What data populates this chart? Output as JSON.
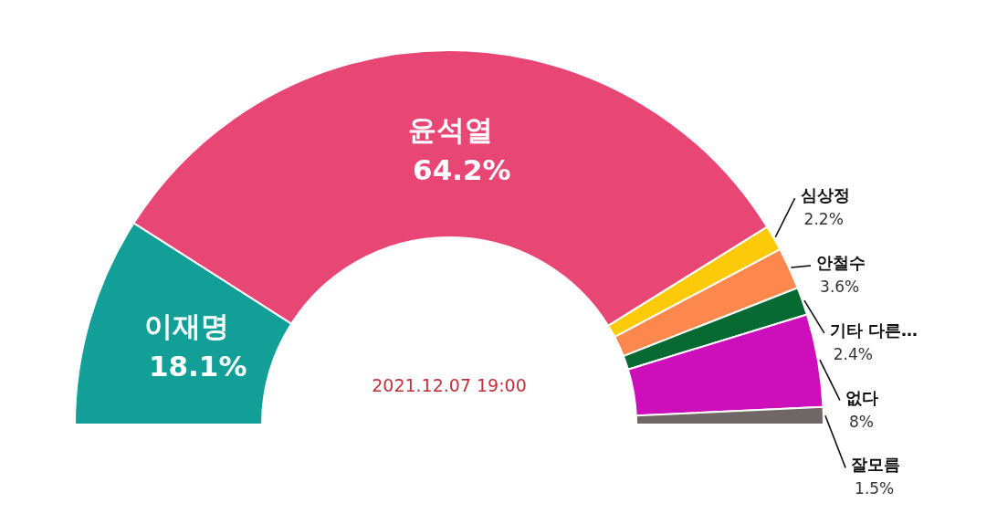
{
  "chart_data": {
    "type": "donut",
    "categories": [
      "이재명",
      "윤석열",
      "심상정",
      "안철수",
      "기타 다른…",
      "없다",
      "잘모름"
    ],
    "values": [
      18.1,
      64.2,
      2.2,
      3.6,
      2.4,
      8,
      1.5
    ],
    "colors": [
      "#129f97",
      "#e84775",
      "#fdca0a",
      "#fd884e",
      "#076a33",
      "#cc0fba",
      "#6f6866"
    ],
    "value_labels": [
      "18.1%",
      "64.2%",
      "2.2%",
      "3.6%",
      "2.4%",
      "8%",
      "1.5%"
    ],
    "annotations": [
      "2021.12.07 19:00"
    ]
  }
}
